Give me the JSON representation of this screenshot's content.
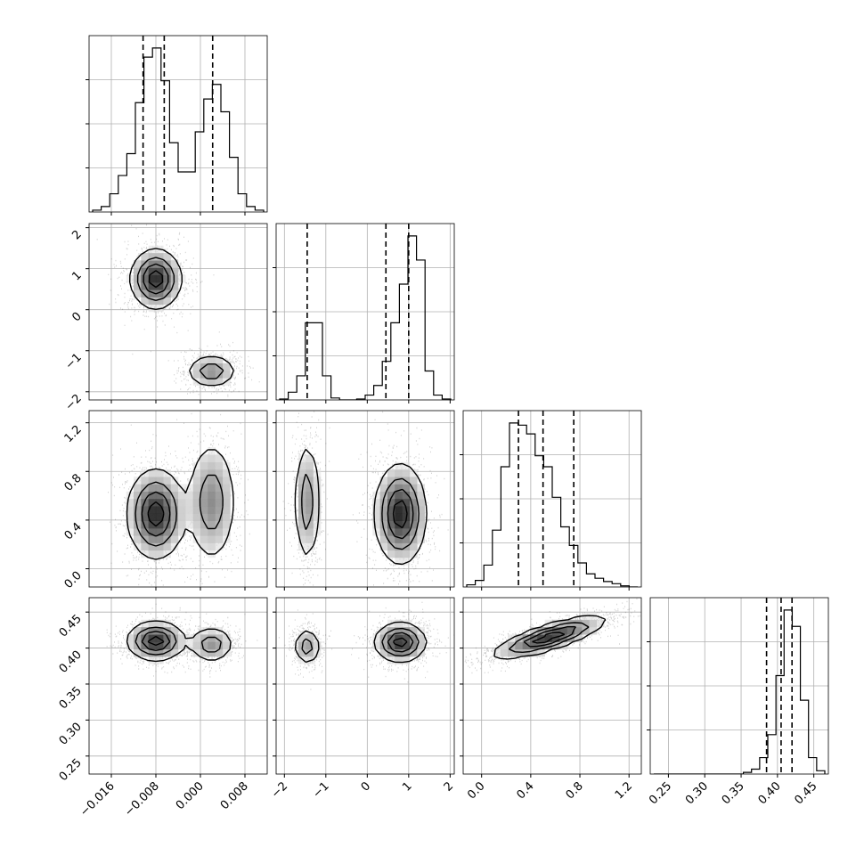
{
  "chart_data": {
    "type": "corner",
    "description_of_series": "corner plot of 4 parameters with 1D marginal histograms and 2D density contours",
    "grid": true,
    "style": {
      "line_color": "#000000",
      "grid_color": "#b0b0b0",
      "point_color": "#444444",
      "background": "#ffffff"
    },
    "parameters": [
      {
        "ticks": [
          -0.016,
          -0.008,
          0.0,
          0.008
        ],
        "tick_labels": [
          "−0.016",
          "−0.008",
          "0.000",
          "0.008"
        ],
        "range": [
          -0.02,
          0.012
        ],
        "quantiles": [
          -0.0103,
          -0.0065,
          0.0022
        ],
        "hist_counts": [
          1,
          3,
          10,
          20,
          32,
          60,
          85,
          90,
          72,
          38,
          22,
          22,
          44,
          62,
          70,
          55,
          30,
          10,
          3,
          1
        ]
      },
      {
        "ticks": [
          -2,
          -1,
          0,
          1,
          2
        ],
        "tick_labels": [
          "−2",
          "−1",
          "0",
          "1",
          "2"
        ],
        "ylabels_left": [
          "2",
          "1",
          "0",
          "−1",
          "−2"
        ],
        "range": [
          -2.2,
          2.1
        ],
        "quantiles": [
          -1.45,
          0.45,
          1.0
        ],
        "hist_counts": [
          1,
          8,
          25,
          80,
          80,
          25,
          2,
          0,
          0,
          1,
          5,
          15,
          40,
          80,
          120,
          170,
          145,
          30,
          5,
          1
        ]
      },
      {
        "ticks": [
          0.0,
          0.4,
          0.8,
          1.2
        ],
        "tick_labels": [
          "0.0",
          "0.4",
          "0.8",
          "1.2"
        ],
        "range": [
          -0.15,
          1.3
        ],
        "quantiles": [
          0.3,
          0.5,
          0.75
        ],
        "hist_counts": [
          2,
          6,
          20,
          52,
          110,
          150,
          148,
          140,
          120,
          110,
          82,
          55,
          38,
          22,
          12,
          8,
          5,
          3,
          1,
          0
        ]
      },
      {
        "ticks": [
          0.25,
          0.3,
          0.35,
          0.4,
          0.45
        ],
        "tick_labels": [
          "0.25",
          "0.30",
          "0.35",
          "0.40",
          "0.45"
        ],
        "ylabels_left": [
          "0.45",
          "0.40",
          "0.35",
          "0.30",
          "0.25"
        ],
        "range": [
          0.225,
          0.47
        ],
        "quantiles": [
          0.385,
          0.405,
          0.42
        ],
        "hist_counts": [
          0,
          0,
          0,
          0,
          0,
          0,
          0,
          0,
          0,
          0,
          0,
          1,
          3,
          10,
          24,
          60,
          100,
          90,
          45,
          10,
          2
        ]
      }
    ],
    "modes": {
      "p0_p1": [
        {
          "cx": -0.008,
          "cy": 0.75,
          "sx": 0.0022,
          "sy": 0.35,
          "w": 0.65
        },
        {
          "cx": 0.002,
          "cy": -1.5,
          "sx": 0.0022,
          "sy": 0.2,
          "w": 0.35
        }
      ],
      "p0_p2": [
        {
          "cx": -0.008,
          "cy": 0.45,
          "sx": 0.0025,
          "sy": 0.18,
          "w": 0.65
        },
        {
          "cx": 0.002,
          "cy": 0.55,
          "sx": 0.0022,
          "sy": 0.25,
          "w": 0.35
        }
      ],
      "p1_p2": [
        {
          "cx": -1.45,
          "cy": 0.55,
          "sx": 0.15,
          "sy": 0.25,
          "w": 0.35
        },
        {
          "cx": 0.8,
          "cy": 0.45,
          "sx": 0.3,
          "sy": 0.2,
          "w": 0.65
        }
      ],
      "p0_p3": [
        {
          "cx": -0.008,
          "cy": 0.41,
          "sx": 0.0025,
          "sy": 0.013,
          "w": 0.65
        },
        {
          "cx": 0.002,
          "cy": 0.405,
          "sx": 0.002,
          "sy": 0.012,
          "w": 0.35
        }
      ],
      "p1_p3": [
        {
          "cx": -1.45,
          "cy": 0.402,
          "sx": 0.15,
          "sy": 0.012,
          "w": 0.35
        },
        {
          "cx": 0.8,
          "cy": 0.408,
          "sx": 0.3,
          "sy": 0.013,
          "w": 0.65
        }
      ],
      "p2_p3": [
        {
          "cx": 0.55,
          "cy": 0.415,
          "sx": 0.22,
          "sy": 0.014,
          "w": 1.0,
          "rho": 0.8
        }
      ]
    }
  }
}
